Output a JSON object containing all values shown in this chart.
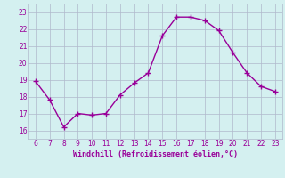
{
  "x": [
    6,
    7,
    8,
    9,
    10,
    11,
    12,
    13,
    14,
    15,
    16,
    17,
    18,
    19,
    20,
    21,
    22,
    23
  ],
  "y": [
    18.9,
    17.8,
    16.2,
    17.0,
    16.9,
    17.0,
    18.1,
    18.8,
    19.4,
    21.6,
    22.7,
    22.7,
    22.5,
    21.9,
    20.6,
    19.4,
    18.6,
    18.3
  ],
  "xlabel": "Windchill (Refroidissement éolien,°C)",
  "ylim": [
    15.5,
    23.5
  ],
  "xlim": [
    5.5,
    23.5
  ],
  "yticks": [
    16,
    17,
    18,
    19,
    20,
    21,
    22,
    23
  ],
  "xticks": [
    6,
    7,
    8,
    9,
    10,
    11,
    12,
    13,
    14,
    15,
    16,
    17,
    18,
    19,
    20,
    21,
    22,
    23
  ],
  "line_color": "#990099",
  "marker": "+",
  "bg_color": "#d4f0f0",
  "grid_color": "#b0b8cc"
}
